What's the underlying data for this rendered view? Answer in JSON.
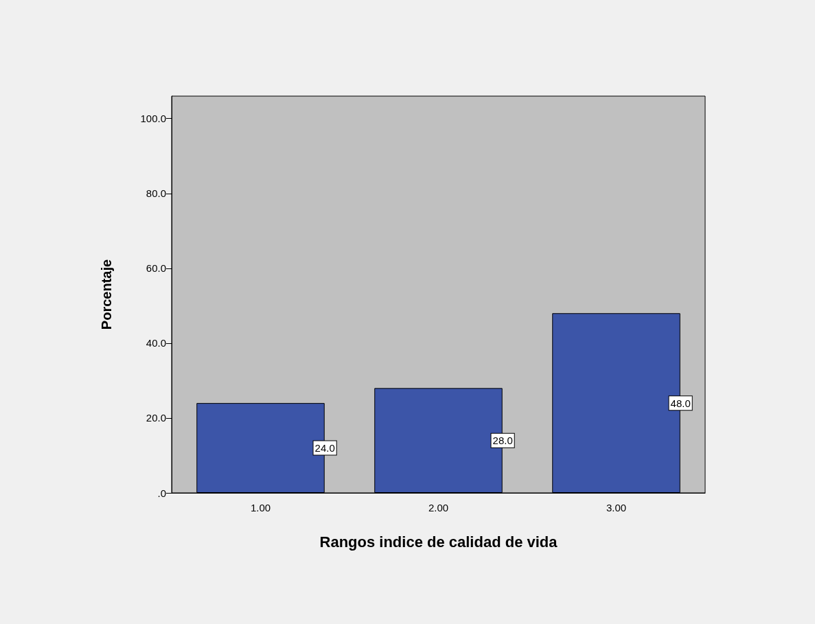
{
  "chart_data": {
    "type": "bar",
    "xlabel": "Rangos indice de calidad de vida",
    "ylabel": "Porcentaje",
    "categories": [
      "1.00",
      "2.00",
      "3.00"
    ],
    "values": [
      24.0,
      28.0,
      48.0
    ],
    "color": "#3c55a8",
    "value_labels": [
      "24.0",
      "28.0",
      "48.0"
    ],
    "ylim": [
      0,
      106
    ],
    "yticks": [
      {
        "value": 0,
        "label": ".0"
      },
      {
        "value": 20,
        "label": "20.0"
      },
      {
        "value": 40,
        "label": "40.0"
      },
      {
        "value": 60,
        "label": "60.0"
      },
      {
        "value": 80,
        "label": "80.0"
      },
      {
        "value": 100,
        "label": "100.0"
      }
    ],
    "grid": false
  }
}
